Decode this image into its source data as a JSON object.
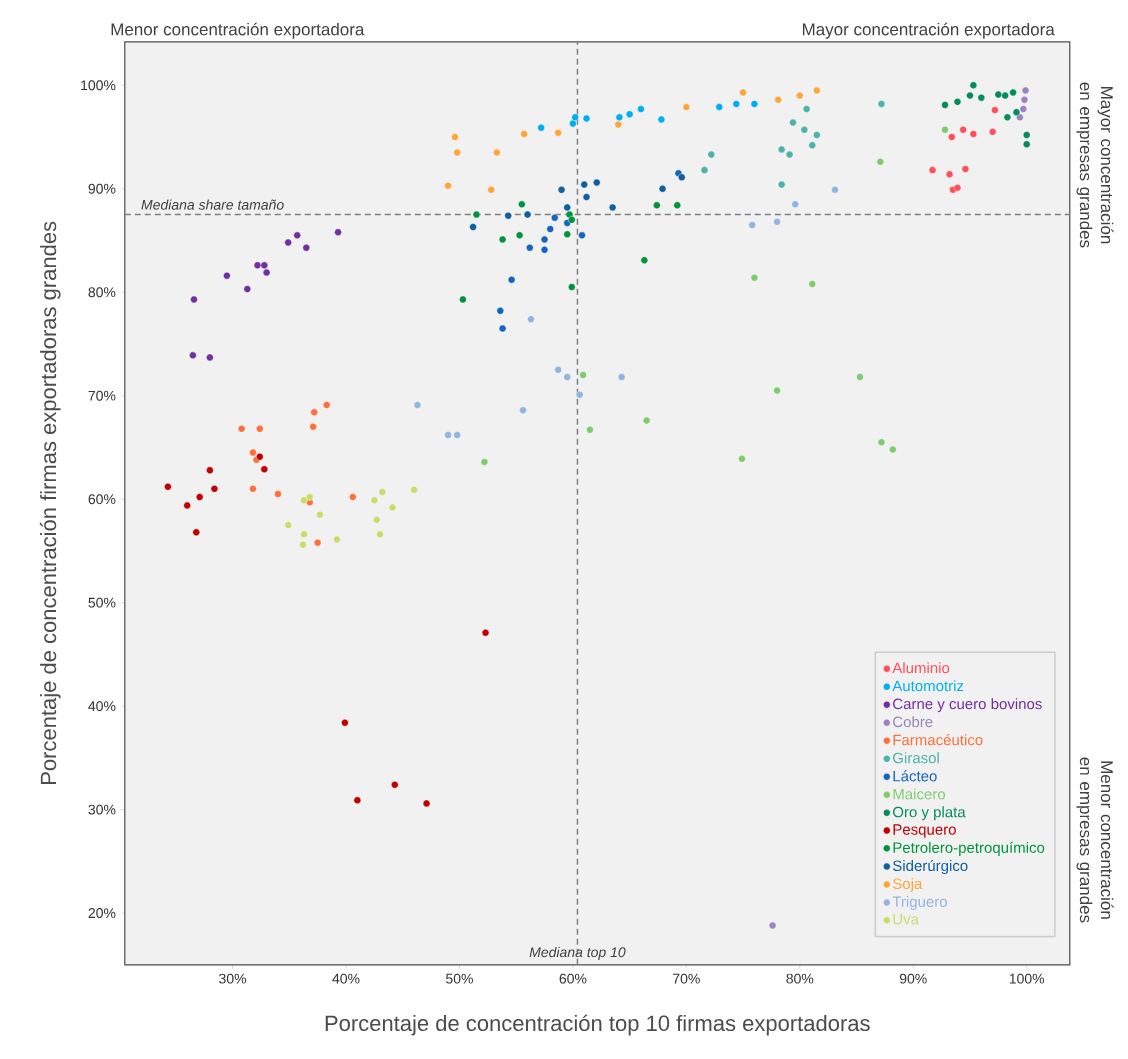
{
  "chart_data": {
    "type": "scatter",
    "xlabel": "Porcentaje de concentración top 10 firmas exportadoras",
    "ylabel": "Porcentaje de concentración firmas exportadoras grandes",
    "annotations": [
      "Menor concentración exportadora",
      "Mayor concentración exportadora",
      "Mayor concentración en empresas grandes",
      "Menor concentración en empresas grandes"
    ],
    "xlim": [
      20.5,
      103.8
    ],
    "ylim": [
      15.0,
      104.2
    ],
    "xticks": [
      {
        "value": 30,
        "label": "30%"
      },
      {
        "value": 40,
        "label": "40%"
      },
      {
        "value": 50,
        "label": "50%"
      },
      {
        "value": 60,
        "label": "60%"
      },
      {
        "value": 70,
        "label": "70%"
      },
      {
        "value": 80,
        "label": "80%"
      },
      {
        "value": 90,
        "label": "90%"
      },
      {
        "value": 100,
        "label": "100%"
      }
    ],
    "yticks": [
      {
        "value": 20,
        "label": "20%"
      },
      {
        "value": 30,
        "label": "30%"
      },
      {
        "value": 40,
        "label": "40%"
      },
      {
        "value": 50,
        "label": "50%"
      },
      {
        "value": 60,
        "label": "60%"
      },
      {
        "value": 70,
        "label": "70%"
      },
      {
        "value": 80,
        "label": "80%"
      },
      {
        "value": 90,
        "label": "90%"
      },
      {
        "value": 100,
        "label": "100%"
      }
    ],
    "ref_lines": [
      {
        "axis": "x",
        "value": 60.4,
        "label": "Mediana top 10",
        "color": "#808080",
        "line_style": "dashed"
      },
      {
        "axis": "y",
        "value": 87.5,
        "label": "Mediana share tamaño",
        "color": "#808080",
        "line_style": "dashed"
      }
    ],
    "legend": "bottom right",
    "marker": "circle",
    "series": [
      {
        "name": "Aluminio",
        "color": "#ff4f5a",
        "x": [
          91.7,
          93.2,
          94.6,
          93.5,
          93.9,
          93.4,
          94.4,
          95.3,
          97.2,
          97.0
        ],
        "values": [
          91.8,
          91.4,
          91.9,
          89.9,
          90.1,
          95.0,
          95.7,
          95.3,
          97.6,
          95.5
        ]
      },
      {
        "name": "Automotriz",
        "color": "#00aeef",
        "x": [
          57.2,
          60.0,
          60.2,
          61.2,
          64.1,
          65.0,
          66.0,
          67.8,
          72.9,
          74.4,
          76.0
        ],
        "values": [
          95.9,
          96.3,
          96.9,
          96.8,
          96.9,
          97.2,
          97.7,
          96.7,
          97.9,
          98.2,
          98.2
        ]
      },
      {
        "name": "Carne y cuero bovinos",
        "color": "#7030a0",
        "x": [
          26.6,
          29.5,
          31.3,
          32.2,
          32.8,
          33.0,
          34.9,
          35.7,
          36.5,
          39.3,
          26.5,
          28.0
        ],
        "values": [
          79.3,
          81.6,
          80.3,
          82.6,
          82.6,
          81.9,
          84.8,
          85.5,
          84.3,
          85.8,
          73.9,
          73.7
        ]
      },
      {
        "name": "Cobre",
        "color": "#9b84bd",
        "x": [
          99.9,
          99.8,
          99.7,
          99.4,
          77.6
        ],
        "values": [
          99.5,
          98.6,
          97.7,
          96.9,
          18.8
        ]
      },
      {
        "name": "Farmacéutico",
        "color": "#ff6f3c",
        "x": [
          30.8,
          32.4,
          31.8,
          32.1,
          37.2,
          38.3,
          37.1,
          31.8,
          34.0,
          40.6,
          36.8,
          37.5
        ],
        "values": [
          66.8,
          66.8,
          64.5,
          63.8,
          68.4,
          69.1,
          67.0,
          61.0,
          60.5,
          60.2,
          59.7,
          55.8
        ]
      },
      {
        "name": "Girasol",
        "color": "#4bb3a8",
        "x": [
          72.2,
          71.6,
          87.2,
          80.6,
          79.4,
          80.4,
          81.5,
          78.4,
          79.1,
          81.1,
          78.4
        ],
        "values": [
          93.3,
          91.8,
          98.2,
          97.7,
          96.4,
          95.7,
          95.2,
          93.8,
          93.3,
          94.2,
          90.4
        ]
      },
      {
        "name": "Lácteo",
        "color": "#1565c0",
        "x": [
          69.3,
          58.4,
          58.0,
          57.5,
          56.2,
          57.5,
          59.5,
          60.8,
          54.6,
          53.6,
          53.8
        ],
        "values": [
          91.5,
          87.2,
          86.1,
          85.1,
          84.3,
          84.1,
          86.7,
          85.5,
          81.2,
          78.2,
          76.5
        ]
      },
      {
        "name": "Maicero",
        "color": "#7fcc6f",
        "x": [
          92.8,
          87.1,
          76.0,
          81.1,
          60.9,
          61.5,
          66.5,
          52.2,
          78.0,
          85.3,
          74.9,
          87.2,
          88.2
        ],
        "values": [
          95.7,
          92.6,
          81.4,
          80.8,
          72.0,
          66.7,
          67.6,
          63.6,
          70.5,
          71.8,
          63.9,
          65.5,
          64.8
        ]
      },
      {
        "name": "Oro y plata",
        "color": "#068c5a",
        "x": [
          92.8,
          93.9,
          95.0,
          95.3,
          96.0,
          97.5,
          98.1,
          98.8,
          98.3,
          99.1,
          100.0,
          100.0
        ],
        "values": [
          98.1,
          98.4,
          99.0,
          100.0,
          98.8,
          99.1,
          99.0,
          99.3,
          96.9,
          97.4,
          95.2,
          94.3
        ]
      },
      {
        "name": "Pesquero",
        "color": "#c00000",
        "x": [
          24.3,
          28.0,
          28.4,
          27.1,
          26.0,
          26.8,
          32.4,
          32.8,
          52.3,
          39.9,
          41.0,
          44.3,
          47.1
        ],
        "values": [
          61.2,
          62.8,
          61.0,
          60.2,
          59.4,
          56.8,
          64.1,
          62.9,
          47.1,
          38.4,
          30.9,
          32.4,
          30.6
        ]
      },
      {
        "name": "Petrolero-petroquímico",
        "color": "#00933e",
        "x": [
          51.5,
          55.5,
          53.8,
          55.3,
          59.7,
          59.5,
          59.9,
          67.4,
          69.2,
          66.3,
          59.9,
          50.3
        ],
        "values": [
          87.5,
          88.5,
          85.1,
          85.5,
          87.5,
          85.6,
          87.0,
          88.4,
          88.4,
          83.1,
          80.5,
          79.3
        ]
      },
      {
        "name": "Siderúrgico",
        "color": "#0d5fa0",
        "x": [
          51.2,
          54.3,
          56.0,
          59.0,
          59.5,
          61.0,
          62.1,
          61.2,
          63.5,
          67.9,
          69.6
        ],
        "values": [
          86.3,
          87.4,
          87.5,
          89.9,
          88.2,
          90.4,
          90.6,
          89.2,
          88.2,
          90.0,
          91.1
        ]
      },
      {
        "name": "Soja",
        "color": "#ffa53a",
        "x": [
          49.6,
          49.8,
          53.3,
          55.7,
          58.7,
          49.0,
          52.8,
          64.0,
          70.0,
          75.0,
          78.1,
          80.0,
          81.5
        ],
        "values": [
          95.0,
          93.5,
          93.5,
          95.3,
          95.4,
          90.3,
          89.9,
          96.2,
          97.9,
          99.3,
          98.6,
          99.0,
          99.5
        ]
      },
      {
        "name": "Triguero",
        "color": "#92b4de",
        "x": [
          83.1,
          79.6,
          78.0,
          75.8,
          56.3,
          46.3,
          49.0,
          49.8,
          55.6,
          58.7,
          59.5,
          60.6,
          64.3
        ],
        "values": [
          89.9,
          88.5,
          86.8,
          86.5,
          77.4,
          69.1,
          66.2,
          66.2,
          68.6,
          72.5,
          71.8,
          70.1,
          71.8
        ]
      },
      {
        "name": "Uva",
        "color": "#c8dc6e",
        "x": [
          36.3,
          36.8,
          37.7,
          34.9,
          36.3,
          36.2,
          39.2,
          43.2,
          42.5,
          44.1,
          42.7,
          43.0,
          46.0
        ],
        "values": [
          59.9,
          60.2,
          58.5,
          57.5,
          56.6,
          55.6,
          56.1,
          60.7,
          59.9,
          59.2,
          58.0,
          56.6,
          60.9
        ]
      }
    ]
  }
}
